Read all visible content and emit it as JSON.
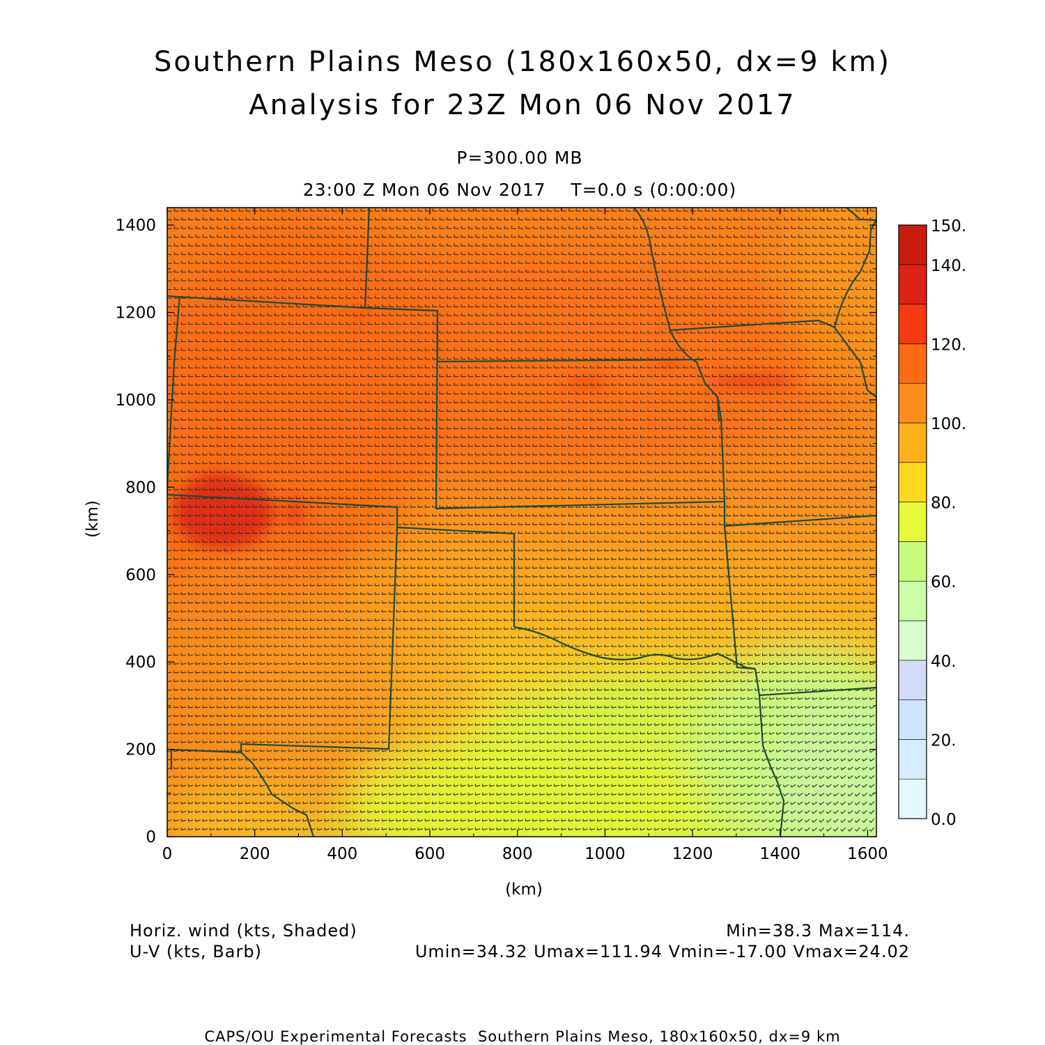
{
  "header": {
    "title_line1": "Southern Plains Meso (180x160x50, dx=9 km)",
    "title_line2": "Analysis for 23Z Mon 06 Nov 2017",
    "level": "P=300.00 MB",
    "valid_time": "23:00 Z Mon 06 Nov 2017    T=0.0 s (0:00:00)"
  },
  "axes": {
    "x_ticks": [
      "0",
      "200",
      "400",
      "600",
      "800",
      "1000",
      "1200",
      "1400",
      "1600"
    ],
    "y_ticks": [
      "0",
      "200",
      "400",
      "600",
      "800",
      "1000",
      "1200",
      "1400"
    ],
    "x_label": "(km)",
    "y_label": "(km)",
    "x_range_km": [
      0,
      1620
    ],
    "y_range_km": [
      0,
      1440
    ]
  },
  "colorbar": {
    "labels": [
      "0.0",
      "20.",
      "40.",
      "60.",
      "80.",
      "100.",
      "120.",
      "140.",
      "150."
    ],
    "levels": [
      0,
      10,
      20,
      30,
      40,
      50,
      60,
      70,
      80,
      90,
      100,
      110,
      120,
      130,
      140,
      150
    ],
    "colors": [
      "#e6f8ff",
      "#d4ecfe",
      "#cfe3fd",
      "#d3dcf7",
      "#d8fcd0",
      "#ccfca8",
      "#c9f97d",
      "#e6fb3a",
      "#ffd81e",
      "#fdb01a",
      "#fc8e1f",
      "#fb6b14",
      "#f83a10",
      "#de2115",
      "#ca1b0f",
      "#b20b05"
    ]
  },
  "legend": {
    "line1_left": "Horiz. wind (kts, Shaded)",
    "line2_left": "U-V (kts, Barb)",
    "line1_right": "Min=38.3 Max=114.",
    "line2_right": "Umin=34.32 Umax=111.94 Vmin=-17.00 Vmax=24.02"
  },
  "footer": {
    "credit": "CAPS/OU Experimental Forecasts  Southern Plains Meso, 180x160x50, dx=9 km"
  },
  "map_data": {
    "field": "Horizontal wind speed (kts) at 300 mb",
    "min": 38.3,
    "max": 114,
    "regions": [
      {
        "name": "core",
        "x_km": 150,
        "y_km": 720,
        "speed": 112
      },
      {
        "name": "jet-streak-east",
        "x_km": 1300,
        "y_km": 1040,
        "speed": 111
      },
      {
        "name": "jet-streak-central",
        "x_km": 970,
        "y_km": 1035,
        "speed": 111
      },
      {
        "name": "southeast-minimum",
        "x_km": 1500,
        "y_km": 80,
        "speed": 40
      }
    ]
  }
}
